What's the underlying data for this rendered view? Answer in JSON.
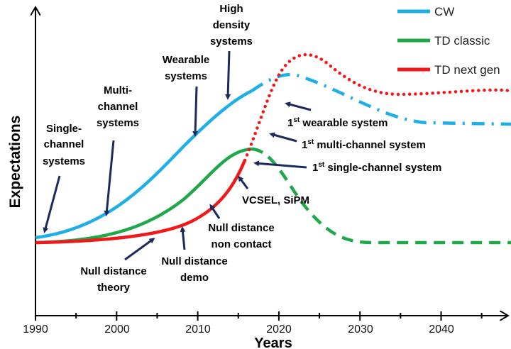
{
  "axes": {
    "x_label": "Years",
    "y_label": "Expectations",
    "x_ticks": [
      "1990",
      "2000",
      "2010",
      "2020",
      "2030",
      "2040"
    ]
  },
  "legend": [
    {
      "label": "CW",
      "color": "#1eaee8",
      "style": "solid / dash-dot"
    },
    {
      "label": "TD classic",
      "color": "#1fa84a",
      "style": "solid / dashed"
    },
    {
      "label": "TD next gen",
      "color": "#f01818",
      "style": "solid / dotted"
    }
  ],
  "annotations": {
    "single_channel": [
      "Single-",
      "channel",
      "systems"
    ],
    "multi_channel": [
      "Multi-",
      "channel",
      "systems"
    ],
    "wearable": [
      "Wearable",
      "systems"
    ],
    "high_density": [
      "High",
      "density",
      "systems"
    ],
    "first_wearable": {
      "sup": "st",
      "num": "1",
      "text": " wearable system"
    },
    "first_multi": {
      "sup": "st",
      "num": "1",
      "text": " multi-channel system"
    },
    "first_single": {
      "sup": "st",
      "num": "1",
      "text": " single-channel system"
    },
    "vcsel": "VCSEL, SiPM",
    "non_contact": [
      "Null distance",
      "non contact"
    ],
    "demo": [
      "Null distance",
      "demo"
    ],
    "theory": [
      "Null distance",
      "theory"
    ]
  },
  "arrow_color": "#1c2a5e"
}
